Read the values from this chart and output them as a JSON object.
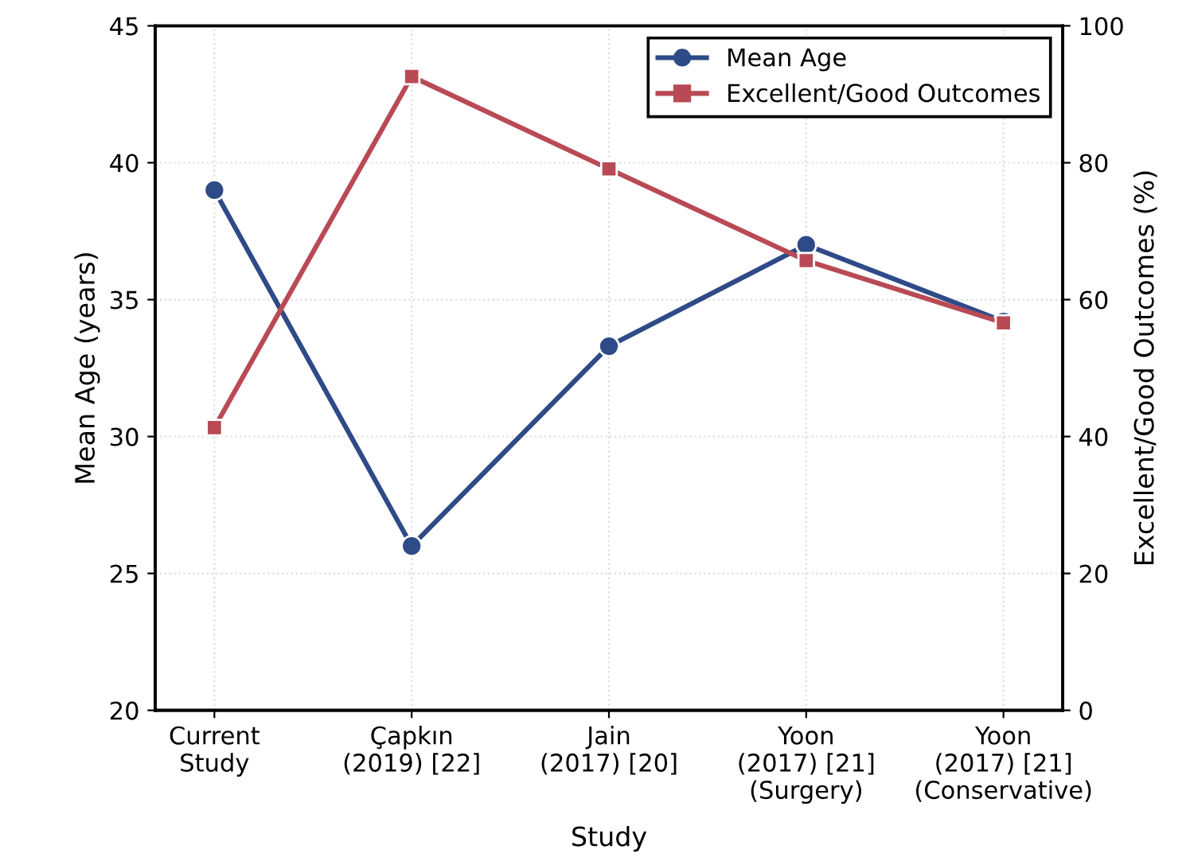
{
  "chart_data": {
    "type": "line",
    "xlabel": "Study",
    "ylabel": "Mean Age (years)",
    "y2label": "Excellent/Good Outcomes (%)",
    "categories": [
      "Current\nStudy",
      "Çapkın\n(2019) [22]",
      "Jain\n(2017) [20]",
      "Yoon\n(2017) [21]\n(Surgery)",
      "Yoon\n(2017) [21]\n(Conservative)"
    ],
    "series": [
      {
        "name": "Mean Age",
        "color": "#2e4a87",
        "marker": "circle",
        "values": [
          39,
          26,
          33.3,
          37,
          34.2
        ]
      },
      {
        "name": "Excellent/Good Outcomes",
        "color": "#b94a55",
        "marker": "square",
        "axis": "y2",
        "values": [
          41.3,
          92.6,
          79.1,
          65.7,
          56.6
        ]
      }
    ],
    "ylim": [
      20,
      45
    ],
    "yticks": [
      20,
      25,
      30,
      35,
      40,
      45
    ],
    "y2lim": [
      0,
      100
    ],
    "y2ticks": [
      0,
      20,
      40,
      60,
      80,
      100
    ],
    "grid": true,
    "legend": "top right",
    "line_style": "solid"
  }
}
